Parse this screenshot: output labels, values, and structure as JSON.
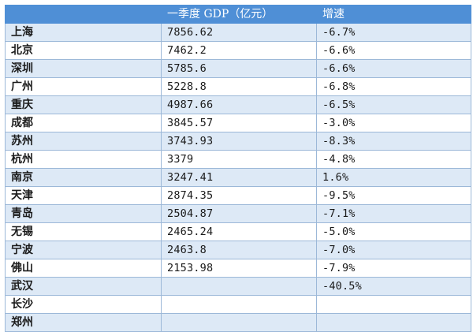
{
  "table": {
    "headers": {
      "city": "",
      "gdp": "一季度 GDP（亿元）",
      "growth": "增速"
    },
    "rows": [
      {
        "city": "上海",
        "gdp": "7856.62",
        "growth": "-6.7%"
      },
      {
        "city": "北京",
        "gdp": "7462.2",
        "growth": "-6.6%"
      },
      {
        "city": "深圳",
        "gdp": "5785.6",
        "growth": "-6.6%"
      },
      {
        "city": "广州",
        "gdp": "5228.8",
        "growth": "-6.8%"
      },
      {
        "city": "重庆",
        "gdp": "4987.66",
        "growth": "-6.5%"
      },
      {
        "city": "成都",
        "gdp": "3845.57",
        "growth": "-3.0%"
      },
      {
        "city": "苏州",
        "gdp": "3743.93",
        "growth": "-8.3%"
      },
      {
        "city": "杭州",
        "gdp": "3379",
        "growth": "-4.8%"
      },
      {
        "city": "南京",
        "gdp": "3247.41",
        "growth": "1.6%"
      },
      {
        "city": "天津",
        "gdp": "2874.35",
        "growth": "-9.5%"
      },
      {
        "city": "青岛",
        "gdp": "2504.87",
        "growth": "-7.1%"
      },
      {
        "city": "无锡",
        "gdp": "2465.24",
        "growth": "-5.0%"
      },
      {
        "city": "宁波",
        "gdp": "2463.8",
        "growth": "-7.0%"
      },
      {
        "city": "佛山",
        "gdp": "2153.98",
        "growth": "-7.9%"
      },
      {
        "city": "武汉",
        "gdp": "",
        "growth": "-40.5%"
      },
      {
        "city": "长沙",
        "gdp": "",
        "growth": ""
      },
      {
        "city": "郑州",
        "gdp": "",
        "growth": ""
      }
    ]
  },
  "colors": {
    "header_bg": "#4f8fd6",
    "header_text": "#ffffff",
    "band_odd": "#dde9f6",
    "band_even": "#ffffff",
    "border": "#9cb8d8"
  }
}
